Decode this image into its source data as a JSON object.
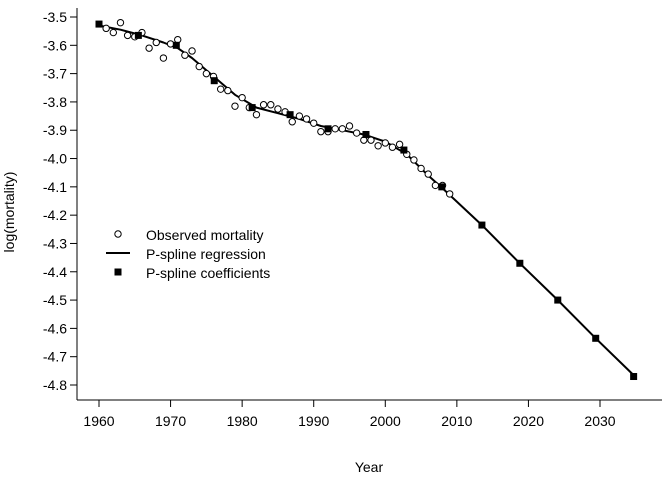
{
  "chart_data": {
    "type": "line",
    "title": "",
    "xlabel": "Year",
    "ylabel": "log(mortality)",
    "xlim": [
      1958,
      2037
    ],
    "ylim": [
      -4.85,
      -3.48
    ],
    "xticks": [
      1960,
      1970,
      1980,
      1990,
      2000,
      2010,
      2020,
      2030
    ],
    "yticks": [
      -3.5,
      -3.6,
      -3.7,
      -3.8,
      -3.9,
      -4.0,
      -4.1,
      -4.2,
      -4.3,
      -4.4,
      -4.5,
      -4.6,
      -4.7,
      -4.8
    ],
    "ytick_labels": [
      "-3.5",
      "-3.6",
      "-3.7",
      "-3.8",
      "-3.9",
      "-4.0",
      "-4.1",
      "-4.2",
      "-4.3",
      "-4.4",
      "-4.5",
      "-4.6",
      "-4.7",
      "-4.8"
    ],
    "grid": false,
    "legend_position": "center-left",
    "series": [
      {
        "name": "Observed mortality",
        "kind": "scatter",
        "marker": "open-circle",
        "color": "#000000",
        "x": [
          1961,
          1962,
          1963,
          1964,
          1965,
          1966,
          1967,
          1968,
          1969,
          1970,
          1971,
          1972,
          1973,
          1974,
          1975,
          1976,
          1977,
          1978,
          1979,
          1980,
          1981,
          1982,
          1983,
          1984,
          1985,
          1986,
          1987,
          1988,
          1989,
          1990,
          1991,
          1992,
          1993,
          1994,
          1995,
          1996,
          1997,
          1998,
          1999,
          2000,
          2001,
          2002,
          2003,
          2004,
          2005,
          2006,
          2007,
          2008,
          2009
        ],
        "y": [
          -3.54,
          -3.555,
          -3.52,
          -3.565,
          -3.57,
          -3.555,
          -3.61,
          -3.59,
          -3.645,
          -3.595,
          -3.58,
          -3.635,
          -3.62,
          -3.675,
          -3.7,
          -3.71,
          -3.755,
          -3.76,
          -3.815,
          -3.785,
          -3.82,
          -3.845,
          -3.81,
          -3.81,
          -3.825,
          -3.835,
          -3.87,
          -3.85,
          -3.86,
          -3.875,
          -3.905,
          -3.905,
          -3.895,
          -3.895,
          -3.885,
          -3.91,
          -3.935,
          -3.935,
          -3.955,
          -3.945,
          -3.96,
          -3.95,
          -3.985,
          -4.005,
          -4.035,
          -4.055,
          -4.095,
          -4.095,
          -4.125
        ]
      },
      {
        "name": "P-spline regression",
        "kind": "line",
        "color": "#000000",
        "x": [
          1960,
          1963,
          1966,
          1969,
          1971,
          1973,
          1976,
          1979,
          1982,
          1985,
          1988,
          1991,
          1994,
          1997,
          2000,
          2003,
          2006,
          2008,
          2013.5,
          2018.8,
          2024.1,
          2029.4,
          2034.7
        ],
        "y": [
          -3.53,
          -3.545,
          -3.565,
          -3.59,
          -3.61,
          -3.645,
          -3.71,
          -3.775,
          -3.82,
          -3.84,
          -3.86,
          -3.885,
          -3.9,
          -3.915,
          -3.94,
          -3.985,
          -4.06,
          -4.105,
          -4.235,
          -4.37,
          -4.5,
          -4.635,
          -4.765
        ]
      },
      {
        "name": "P-spline coefficients",
        "kind": "scatter",
        "marker": "filled-square",
        "color": "#000000",
        "x": [
          1960,
          1965.5,
          1970.8,
          1976.1,
          1981.4,
          1986.7,
          1992.0,
          1997.3,
          2002.6,
          2007.9,
          2013.5,
          2018.8,
          2024.1,
          2029.4,
          2034.7
        ],
        "y": [
          -3.525,
          -3.565,
          -3.6,
          -3.725,
          -3.82,
          -3.845,
          -3.895,
          -3.915,
          -3.97,
          -4.1,
          -4.235,
          -4.37,
          -4.5,
          -4.635,
          -4.77
        ]
      }
    ]
  }
}
